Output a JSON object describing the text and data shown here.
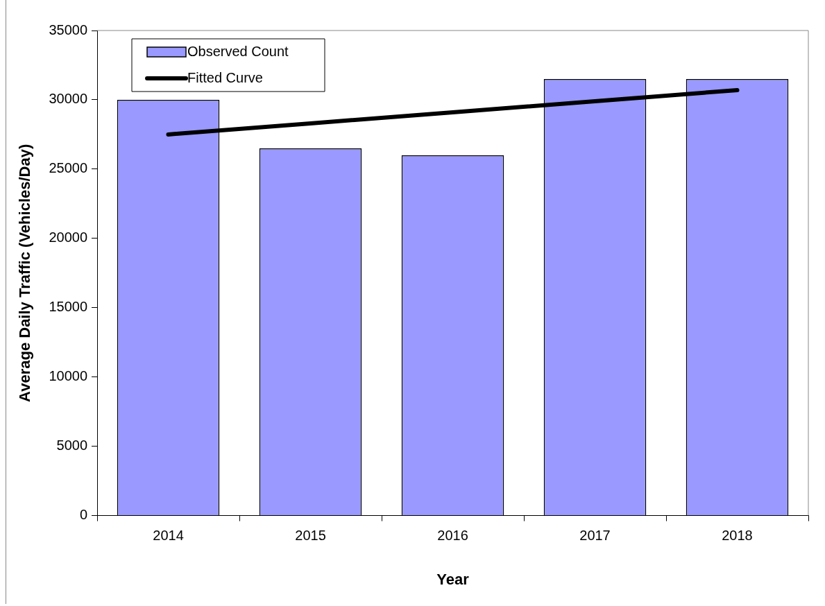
{
  "chart_data": {
    "type": "bar",
    "xlabel": "Year",
    "ylabel": "Average Daily Traffic (Vehicles/Day)",
    "categories": [
      "2014",
      "2015",
      "2016",
      "2017",
      "2018"
    ],
    "series": [
      {
        "name": "Observed Count",
        "color": "#9999ff",
        "values": [
          30000,
          26500,
          26000,
          31500,
          31500
        ]
      },
      {
        "name": "Fitted Curve",
        "type": "line",
        "color": "#000000",
        "values": [
          27500,
          28300,
          29100,
          29900,
          30700
        ]
      }
    ],
    "ylim": [
      0,
      35000
    ],
    "yticks": [
      0,
      5000,
      10000,
      15000,
      20000,
      25000,
      30000,
      35000
    ],
    "grid": false,
    "legend": "top left",
    "marker": "none",
    "line_style": "solid"
  }
}
